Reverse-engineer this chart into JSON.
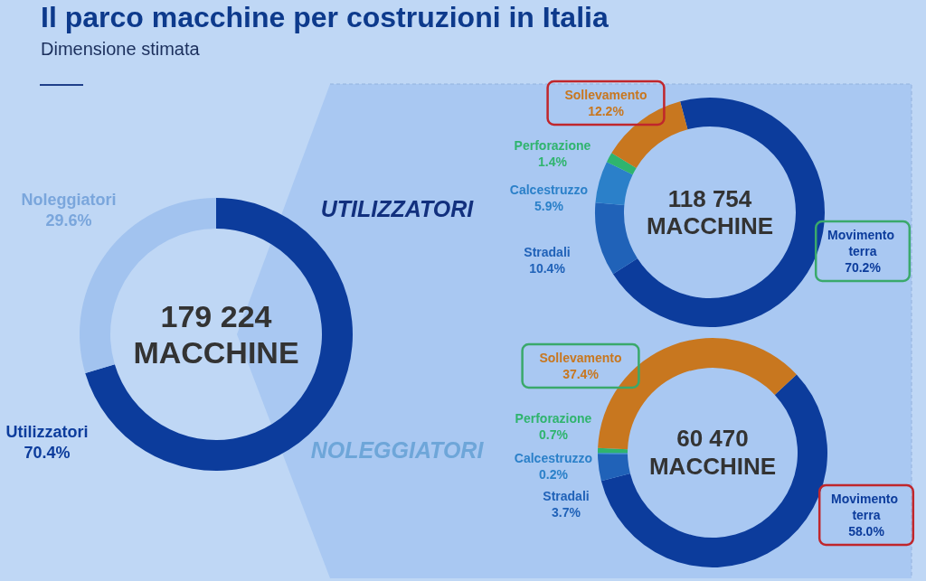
{
  "chart_data": [
    {
      "type": "donut",
      "title": "Il parco macchine per costruzioni in Italia",
      "subtitle": "Dimensione stimata",
      "categories": [
        "Utilizzatori",
        "Noleggiatori"
      ],
      "values": [
        70.4,
        29.6
      ],
      "colors": [
        "#0c3c9c",
        "#a2c3ef"
      ],
      "value_labels": [
        "70.4%",
        "29.6%"
      ],
      "annotations": [
        "179 224",
        "MACCHINE"
      ]
    },
    {
      "type": "donut",
      "title": "UTILIZZATORI",
      "categories": [
        "Movimento terra",
        "Stradali",
        "Calcestruzzo",
        "Perforazione",
        "Sollevamento"
      ],
      "values": [
        70.2,
        10.4,
        5.9,
        1.4,
        12.2
      ],
      "colors": [
        "#0c3c9c",
        "#2062b8",
        "#2b80c9",
        "#2fb46e",
        "#c8771f"
      ],
      "value_labels": [
        "70.2%",
        "10.4%",
        "5.9%",
        "1.4%",
        "12.2%"
      ],
      "annotations": [
        "118 754",
        "MACCHINE"
      ]
    },
    {
      "type": "donut",
      "title": "NOLEGGIATORI",
      "categories": [
        "Movimento terra",
        "Stradali",
        "Calcestruzzo",
        "Perforazione",
        "Sollevamento"
      ],
      "values": [
        58.0,
        3.7,
        0.2,
        0.7,
        37.4
      ],
      "colors": [
        "#0c3c9c",
        "#2062b8",
        "#2b80c9",
        "#2fb46e",
        "#c8771f"
      ],
      "value_labels": [
        "58.0%",
        "3.7%",
        "0.2%",
        "0.7%",
        "37.4%"
      ],
      "annotations": [
        "60 470",
        "MACCHINE"
      ]
    }
  ]
}
